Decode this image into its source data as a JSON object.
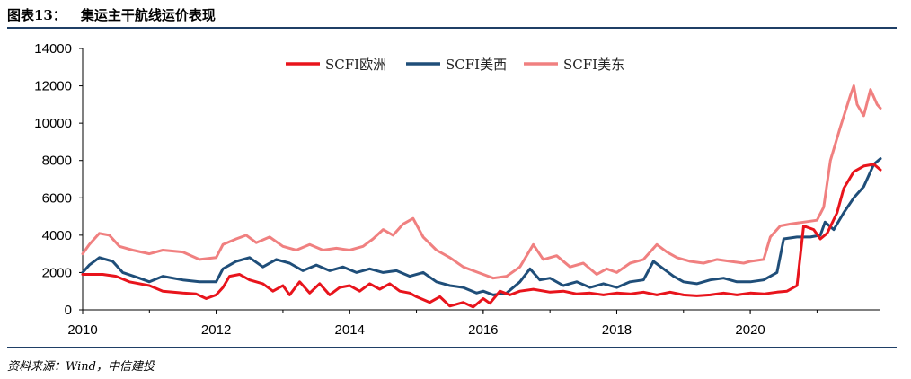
{
  "header": {
    "number": "图表13：",
    "title": "集运主干航线运价表现"
  },
  "source": "资料来源：Wind，中信建投",
  "chart_data": {
    "type": "line",
    "title": "集运主干航线运价表现",
    "xlabel": "",
    "ylabel": "",
    "xlim": [
      2010,
      2021.95
    ],
    "ylim": [
      0,
      14000
    ],
    "x_ticks": [
      "2010",
      "2012",
      "2014",
      "2016",
      "2018",
      "2020"
    ],
    "y_ticks": [
      "0",
      "2000",
      "4000",
      "6000",
      "8000",
      "10000",
      "12000",
      "14000"
    ],
    "grid": false,
    "legend_position": "top-center",
    "series": [
      {
        "name": "SCFI欧洲",
        "color": "#e8141c",
        "points": [
          [
            2010,
            1900
          ],
          [
            2010.3,
            1900
          ],
          [
            2010.5,
            1800
          ],
          [
            2010.7,
            1500
          ],
          [
            2011,
            1300
          ],
          [
            2011.2,
            1000
          ],
          [
            2011.5,
            900
          ],
          [
            2011.7,
            850
          ],
          [
            2011.85,
            600
          ],
          [
            2012,
            800
          ],
          [
            2012.1,
            1200
          ],
          [
            2012.2,
            1800
          ],
          [
            2012.35,
            1900
          ],
          [
            2012.5,
            1600
          ],
          [
            2012.7,
            1400
          ],
          [
            2012.85,
            1000
          ],
          [
            2013,
            1300
          ],
          [
            2013.1,
            800
          ],
          [
            2013.25,
            1500
          ],
          [
            2013.4,
            900
          ],
          [
            2013.55,
            1400
          ],
          [
            2013.7,
            800
          ],
          [
            2013.85,
            1200
          ],
          [
            2014,
            1300
          ],
          [
            2014.15,
            1000
          ],
          [
            2014.3,
            1400
          ],
          [
            2014.45,
            1100
          ],
          [
            2014.6,
            1400
          ],
          [
            2014.75,
            1000
          ],
          [
            2014.9,
            900
          ],
          [
            2015,
            700
          ],
          [
            2015.2,
            400
          ],
          [
            2015.35,
            700
          ],
          [
            2015.5,
            200
          ],
          [
            2015.7,
            400
          ],
          [
            2015.85,
            150
          ],
          [
            2016,
            600
          ],
          [
            2016.1,
            350
          ],
          [
            2016.25,
            1000
          ],
          [
            2016.4,
            800
          ],
          [
            2016.55,
            1000
          ],
          [
            2016.75,
            1100
          ],
          [
            2017,
            950
          ],
          [
            2017.2,
            1000
          ],
          [
            2017.4,
            850
          ],
          [
            2017.6,
            900
          ],
          [
            2017.8,
            800
          ],
          [
            2018,
            900
          ],
          [
            2018.2,
            850
          ],
          [
            2018.4,
            950
          ],
          [
            2018.6,
            800
          ],
          [
            2018.8,
            950
          ],
          [
            2019,
            800
          ],
          [
            2019.2,
            750
          ],
          [
            2019.4,
            800
          ],
          [
            2019.6,
            900
          ],
          [
            2019.8,
            800
          ],
          [
            2020,
            900
          ],
          [
            2020.2,
            850
          ],
          [
            2020.4,
            950
          ],
          [
            2020.55,
            1000
          ],
          [
            2020.7,
            1300
          ],
          [
            2020.8,
            4500
          ],
          [
            2020.95,
            4300
          ],
          [
            2021.05,
            3800
          ],
          [
            2021.15,
            4100
          ],
          [
            2021.3,
            5200
          ],
          [
            2021.4,
            6500
          ],
          [
            2021.55,
            7400
          ],
          [
            2021.7,
            7700
          ],
          [
            2021.85,
            7800
          ],
          [
            2021.95,
            7500
          ]
        ]
      },
      {
        "name": "SCFI美西",
        "color": "#1f4e79",
        "points": [
          [
            2010,
            2000
          ],
          [
            2010.1,
            2400
          ],
          [
            2010.25,
            2800
          ],
          [
            2010.45,
            2600
          ],
          [
            2010.6,
            2000
          ],
          [
            2010.85,
            1700
          ],
          [
            2011,
            1500
          ],
          [
            2011.2,
            1800
          ],
          [
            2011.5,
            1600
          ],
          [
            2011.75,
            1500
          ],
          [
            2012,
            1500
          ],
          [
            2012.1,
            2200
          ],
          [
            2012.3,
            2600
          ],
          [
            2012.5,
            2800
          ],
          [
            2012.7,
            2300
          ],
          [
            2012.9,
            2700
          ],
          [
            2013.1,
            2500
          ],
          [
            2013.3,
            2100
          ],
          [
            2013.5,
            2400
          ],
          [
            2013.7,
            2100
          ],
          [
            2013.9,
            2300
          ],
          [
            2014.1,
            2000
          ],
          [
            2014.3,
            2200
          ],
          [
            2014.5,
            2000
          ],
          [
            2014.7,
            2100
          ],
          [
            2014.9,
            1800
          ],
          [
            2015.1,
            2000
          ],
          [
            2015.3,
            1500
          ],
          [
            2015.5,
            1300
          ],
          [
            2015.7,
            1200
          ],
          [
            2015.9,
            900
          ],
          [
            2016,
            1000
          ],
          [
            2016.15,
            800
          ],
          [
            2016.35,
            900
          ],
          [
            2016.55,
            1500
          ],
          [
            2016.7,
            2200
          ],
          [
            2016.85,
            1600
          ],
          [
            2017,
            1700
          ],
          [
            2017.2,
            1300
          ],
          [
            2017.4,
            1500
          ],
          [
            2017.6,
            1200
          ],
          [
            2017.8,
            1400
          ],
          [
            2018,
            1200
          ],
          [
            2018.2,
            1500
          ],
          [
            2018.4,
            1600
          ],
          [
            2018.55,
            2600
          ],
          [
            2018.7,
            2200
          ],
          [
            2018.85,
            1800
          ],
          [
            2019,
            1500
          ],
          [
            2019.2,
            1400
          ],
          [
            2019.4,
            1600
          ],
          [
            2019.6,
            1700
          ],
          [
            2019.8,
            1500
          ],
          [
            2020,
            1500
          ],
          [
            2020.2,
            1600
          ],
          [
            2020.4,
            2000
          ],
          [
            2020.5,
            3800
          ],
          [
            2020.7,
            3900
          ],
          [
            2020.9,
            3900
          ],
          [
            2021.05,
            4000
          ],
          [
            2021.12,
            4700
          ],
          [
            2021.25,
            4300
          ],
          [
            2021.4,
            5200
          ],
          [
            2021.55,
            6000
          ],
          [
            2021.7,
            6600
          ],
          [
            2021.85,
            7800
          ],
          [
            2021.95,
            8100
          ]
        ]
      },
      {
        "name": "SCFI美东",
        "color": "#f08080",
        "points": [
          [
            2010,
            3000
          ],
          [
            2010.1,
            3500
          ],
          [
            2010.25,
            4100
          ],
          [
            2010.4,
            4000
          ],
          [
            2010.55,
            3400
          ],
          [
            2010.75,
            3200
          ],
          [
            2011,
            3000
          ],
          [
            2011.2,
            3200
          ],
          [
            2011.5,
            3100
          ],
          [
            2011.75,
            2700
          ],
          [
            2012,
            2800
          ],
          [
            2012.1,
            3500
          ],
          [
            2012.3,
            3800
          ],
          [
            2012.45,
            4000
          ],
          [
            2012.6,
            3600
          ],
          [
            2012.8,
            3900
          ],
          [
            2013,
            3400
          ],
          [
            2013.2,
            3200
          ],
          [
            2013.4,
            3500
          ],
          [
            2013.6,
            3200
          ],
          [
            2013.8,
            3300
          ],
          [
            2014,
            3200
          ],
          [
            2014.2,
            3400
          ],
          [
            2014.35,
            3800
          ],
          [
            2014.5,
            4300
          ],
          [
            2014.65,
            4000
          ],
          [
            2014.8,
            4600
          ],
          [
            2014.95,
            4900
          ],
          [
            2015.1,
            3900
          ],
          [
            2015.3,
            3200
          ],
          [
            2015.5,
            2800
          ],
          [
            2015.7,
            2300
          ],
          [
            2015.85,
            2100
          ],
          [
            2016,
            1900
          ],
          [
            2016.15,
            1700
          ],
          [
            2016.35,
            1800
          ],
          [
            2016.55,
            2300
          ],
          [
            2016.75,
            3500
          ],
          [
            2016.9,
            2700
          ],
          [
            2017.1,
            2900
          ],
          [
            2017.3,
            2300
          ],
          [
            2017.5,
            2500
          ],
          [
            2017.7,
            1900
          ],
          [
            2017.85,
            2200
          ],
          [
            2018,
            2000
          ],
          [
            2018.2,
            2500
          ],
          [
            2018.4,
            2700
          ],
          [
            2018.6,
            3500
          ],
          [
            2018.75,
            3100
          ],
          [
            2018.9,
            2800
          ],
          [
            2019.1,
            2600
          ],
          [
            2019.3,
            2500
          ],
          [
            2019.5,
            2700
          ],
          [
            2019.7,
            2600
          ],
          [
            2019.9,
            2500
          ],
          [
            2020,
            2600
          ],
          [
            2020.2,
            2700
          ],
          [
            2020.3,
            3900
          ],
          [
            2020.45,
            4500
          ],
          [
            2020.6,
            4600
          ],
          [
            2020.8,
            4700
          ],
          [
            2021.0,
            4800
          ],
          [
            2021.1,
            5500
          ],
          [
            2021.2,
            8000
          ],
          [
            2021.35,
            9800
          ],
          [
            2021.5,
            11500
          ],
          [
            2021.55,
            12000
          ],
          [
            2021.6,
            11000
          ],
          [
            2021.7,
            10400
          ],
          [
            2021.8,
            11800
          ],
          [
            2021.9,
            11000
          ],
          [
            2021.95,
            10800
          ]
        ]
      }
    ]
  }
}
